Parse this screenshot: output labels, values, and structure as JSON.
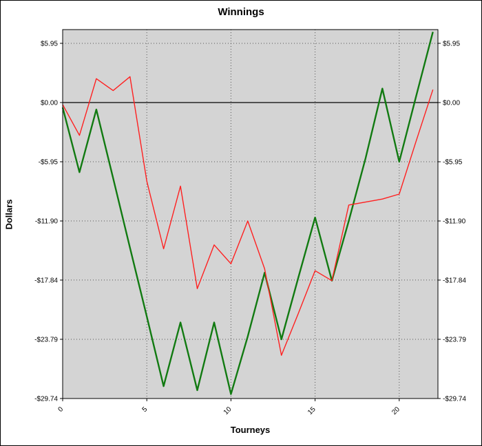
{
  "title": "Winnings",
  "axes": {
    "x_label": "Tourneys",
    "y_label": "Dollars",
    "y_ticks": [
      {
        "v": 5.95,
        "label": "$5.95"
      },
      {
        "v": 0,
        "label": "$0.00"
      },
      {
        "v": -5.95,
        "label": "-$5.95"
      },
      {
        "v": -11.9,
        "label": "-$11.90"
      },
      {
        "v": -17.84,
        "label": "-$17.84"
      },
      {
        "v": -23.79,
        "label": "-$23.79"
      },
      {
        "v": -29.74,
        "label": "-$29.74"
      }
    ],
    "x_ticks": [
      {
        "v": 0,
        "label": "0"
      },
      {
        "v": 5,
        "label": "5"
      },
      {
        "v": 10,
        "label": "10"
      },
      {
        "v": 15,
        "label": "15"
      },
      {
        "v": 20,
        "label": "20"
      }
    ]
  },
  "colors": {
    "plot_bg": "#d4d4d4",
    "grid": "#555555",
    "zero_line": "#000000",
    "frame": "#000000",
    "series_green": "#117a11",
    "series_red": "#ff1f1f"
  },
  "chart_data": {
    "type": "line",
    "title": "Winnings",
    "xlabel": "Tourneys",
    "ylabel": "Dollars",
    "grid": true,
    "legend": "none",
    "xlim": [
      0,
      22.3
    ],
    "ylim": [
      -29.74,
      7.33
    ],
    "x": [
      0,
      1,
      2,
      3,
      4,
      5,
      6,
      7,
      8,
      9,
      10,
      11,
      12,
      13,
      14,
      15,
      16,
      17,
      18,
      19,
      20,
      21,
      22
    ],
    "series": [
      {
        "name": "winnings-green",
        "color": "#117a11",
        "width": 2.4,
        "values": [
          -0.5,
          -7.0,
          -0.7,
          -7.6,
          -14.6,
          -21.5,
          -28.5,
          -22.1,
          -28.9,
          -22.1,
          -29.3,
          -23.5,
          -17.1,
          -23.79,
          -17.6,
          -11.55,
          -17.9,
          -11.9,
          -5.6,
          1.4,
          -5.95,
          0.6,
          7.1
        ]
      },
      {
        "name": "winnings-red",
        "color": "#ff1f1f",
        "width": 1.4,
        "values": [
          -0.2,
          -3.3,
          2.4,
          1.2,
          2.6,
          -7.9,
          -14.7,
          -8.4,
          -18.7,
          -14.3,
          -16.2,
          -11.9,
          -16.7,
          -25.4,
          -21.2,
          -16.9,
          -17.9,
          -10.3,
          -10.0,
          -9.7,
          -9.2,
          -3.9,
          1.3
        ]
      }
    ]
  }
}
